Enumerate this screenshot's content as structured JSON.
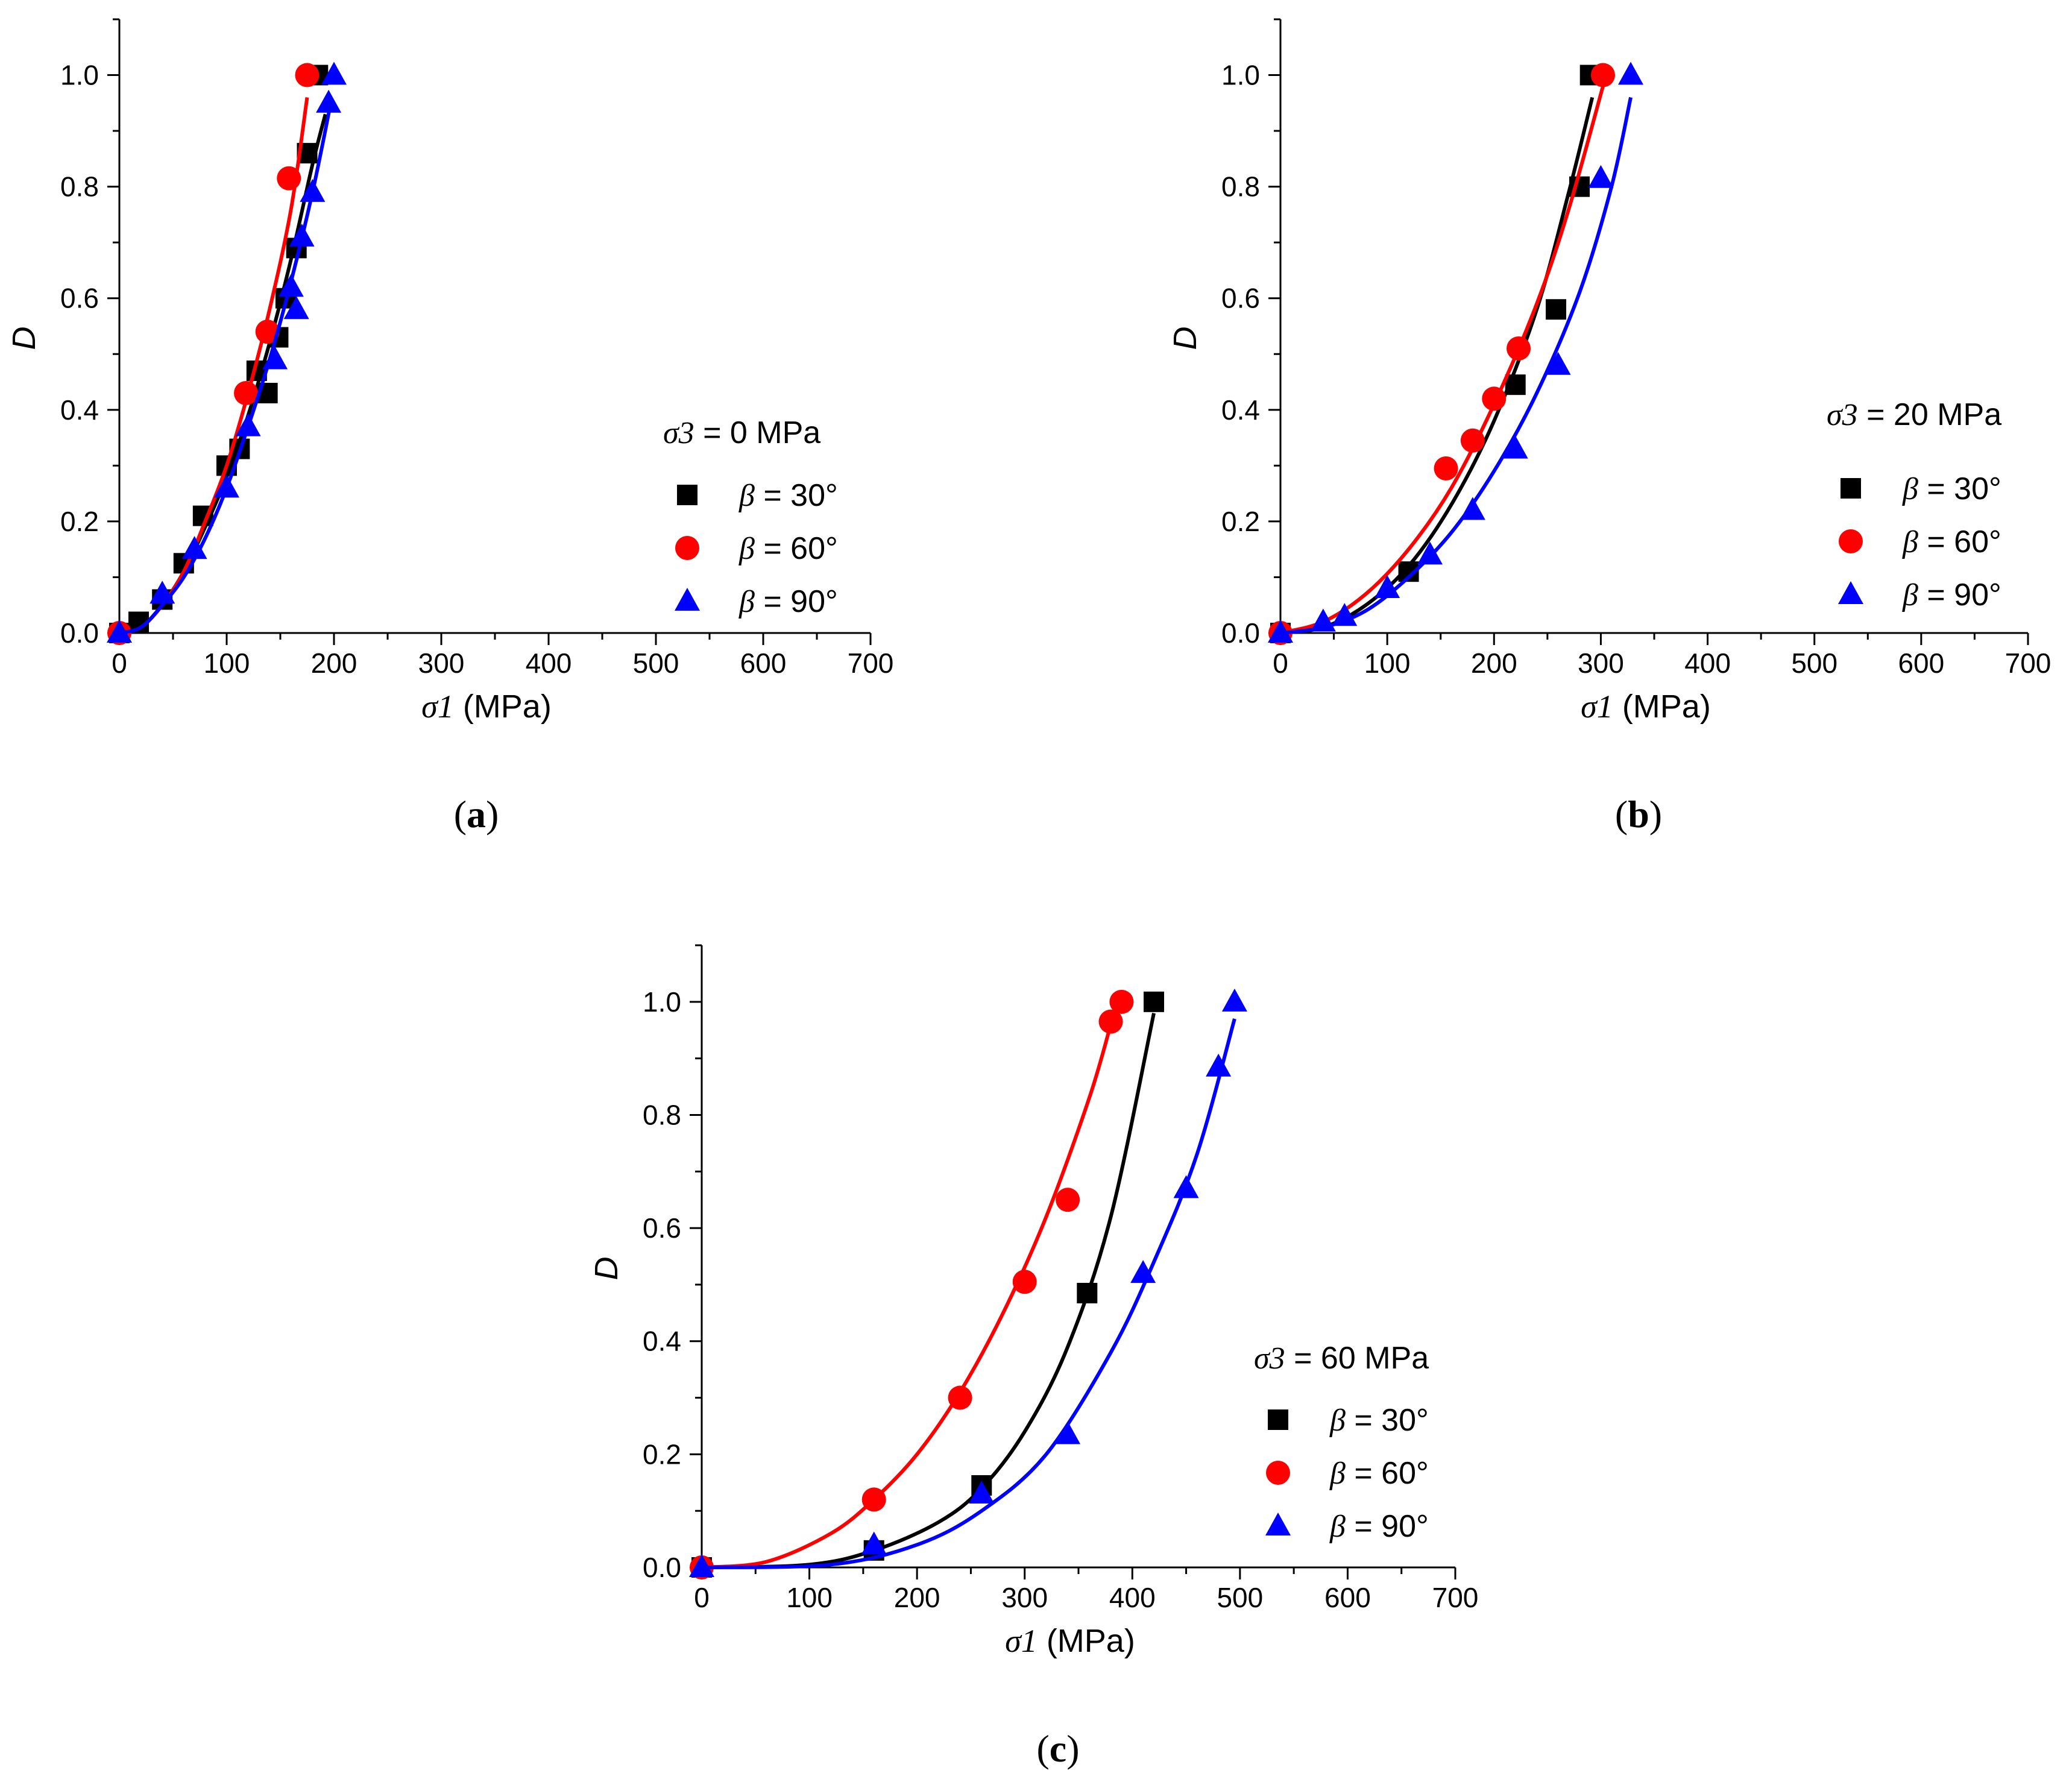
{
  "chart_data": [
    {
      "type": "scatter",
      "panel_label": "a",
      "xlabel": "σ1 (MPa)",
      "ylabel": "D",
      "xlim": [
        0,
        700
      ],
      "ylim": [
        0,
        1.1
      ],
      "xticks": [
        0,
        100,
        200,
        300,
        400,
        500,
        600,
        700
      ],
      "yticks": [
        "0.0",
        "0.2",
        "0.4",
        "0.6",
        "0.8",
        "1.0"
      ],
      "legend_title": "σ3 = 0 MPa",
      "legend_position": "right",
      "series": [
        {
          "name": "β = 30°",
          "color": "#000000",
          "marker": "square",
          "x": [
            0,
            18,
            40,
            60,
            78,
            100,
            112,
            128,
            138,
            148,
            155,
            165,
            175,
            185
          ],
          "y": [
            0,
            0.02,
            0.06,
            0.125,
            0.21,
            0.3,
            0.33,
            0.47,
            0.43,
            0.53,
            0.6,
            0.69,
            0.86,
            1.0
          ],
          "fit_x": [
            0,
            20,
            40,
            60,
            80,
            100,
            120,
            140,
            160,
            180,
            192
          ],
          "fit_y": [
            0,
            0.01,
            0.05,
            0.11,
            0.19,
            0.28,
            0.39,
            0.52,
            0.67,
            0.84,
            0.93
          ]
        },
        {
          "name": "β = 60°",
          "color": "#ff0000",
          "marker": "circle",
          "x": [
            0,
            118,
            138,
            158,
            175
          ],
          "y": [
            0,
            0.43,
            0.54,
            0.815,
            1.0
          ],
          "fit_x": [
            0,
            20,
            40,
            60,
            80,
            100,
            120,
            140,
            160,
            175
          ],
          "fit_y": [
            0,
            0.01,
            0.05,
            0.11,
            0.2,
            0.3,
            0.43,
            0.58,
            0.76,
            0.96
          ]
        },
        {
          "name": "β = 90°",
          "color": "#0000ff",
          "marker": "triangle",
          "x": [
            0,
            40,
            70,
            100,
            120,
            145,
            160,
            165,
            170,
            180,
            195,
            200
          ],
          "y": [
            0,
            0.07,
            0.15,
            0.26,
            0.37,
            0.49,
            0.62,
            0.58,
            0.71,
            0.79,
            0.95,
            1.0
          ],
          "fit_x": [
            0,
            20,
            40,
            60,
            80,
            100,
            120,
            140,
            160,
            180,
            196
          ],
          "fit_y": [
            0,
            0.01,
            0.05,
            0.1,
            0.17,
            0.26,
            0.37,
            0.49,
            0.63,
            0.79,
            0.94
          ]
        }
      ]
    },
    {
      "type": "scatter",
      "panel_label": "b",
      "xlabel": "σ1 (MPa)",
      "ylabel": "D",
      "xlim": [
        0,
        700
      ],
      "ylim": [
        0,
        1.1
      ],
      "xticks": [
        0,
        100,
        200,
        300,
        400,
        500,
        600,
        700
      ],
      "yticks": [
        "0.0",
        "0.2",
        "0.4",
        "0.6",
        "0.8",
        "1.0"
      ],
      "legend_title": "σ3 = 20 MPa",
      "legend_position": "right",
      "series": [
        {
          "name": "β = 30°",
          "color": "#000000",
          "marker": "square",
          "x": [
            0,
            120,
            220,
            258,
            280,
            290
          ],
          "y": [
            0,
            0.11,
            0.445,
            0.58,
            0.8,
            1.0
          ],
          "fit_x": [
            0,
            40,
            80,
            120,
            160,
            200,
            240,
            270,
            292
          ],
          "fit_y": [
            0,
            0.01,
            0.05,
            0.12,
            0.23,
            0.38,
            0.58,
            0.79,
            0.96
          ]
        },
        {
          "name": "β = 60°",
          "color": "#ff0000",
          "marker": "circle",
          "x": [
            0,
            155,
            180,
            200,
            223,
            302
          ],
          "y": [
            0,
            0.295,
            0.345,
            0.42,
            0.51,
            1.0
          ],
          "fit_x": [
            0,
            40,
            80,
            120,
            160,
            200,
            240,
            270,
            302
          ],
          "fit_y": [
            0,
            0.02,
            0.07,
            0.15,
            0.26,
            0.41,
            0.59,
            0.76,
            0.98
          ]
        },
        {
          "name": "β = 90°",
          "color": "#0000ff",
          "marker": "triangle",
          "x": [
            0,
            40,
            60,
            100,
            140,
            180,
            220,
            260,
            300,
            328
          ],
          "y": [
            0,
            0.02,
            0.03,
            0.08,
            0.14,
            0.22,
            0.33,
            0.48,
            0.815,
            1.0
          ],
          "fit_x": [
            0,
            40,
            80,
            120,
            160,
            200,
            240,
            280,
            310,
            328
          ],
          "fit_y": [
            0,
            0.01,
            0.04,
            0.1,
            0.18,
            0.29,
            0.43,
            0.61,
            0.8,
            0.96
          ]
        }
      ]
    },
    {
      "type": "scatter",
      "panel_label": "c",
      "xlabel": "σ1 (MPa)",
      "ylabel": "D",
      "xlim": [
        0,
        700
      ],
      "ylim": [
        0,
        1.1
      ],
      "xticks": [
        0,
        100,
        200,
        300,
        400,
        500,
        600,
        700
      ],
      "yticks": [
        "0.0",
        "0.2",
        "0.4",
        "0.6",
        "0.8",
        "1.0"
      ],
      "legend_title": "σ3 = 60 MPa",
      "legend_position": "right",
      "series": [
        {
          "name": "β = 30°",
          "color": "#000000",
          "marker": "square",
          "x": [
            0,
            160,
            260,
            358,
            420
          ],
          "y": [
            0,
            0.03,
            0.145,
            0.485,
            1.0
          ],
          "fit_x": [
            0,
            100,
            160,
            220,
            260,
            300,
            340,
            380,
            420
          ],
          "fit_y": [
            0,
            0.005,
            0.03,
            0.08,
            0.14,
            0.24,
            0.39,
            0.62,
            0.98
          ]
        },
        {
          "name": "β = 60°",
          "color": "#ff0000",
          "marker": "circle",
          "x": [
            0,
            160,
            240,
            300,
            340,
            380,
            390
          ],
          "y": [
            0,
            0.12,
            0.3,
            0.505,
            0.65,
            0.965,
            1.0
          ],
          "fit_x": [
            0,
            60,
            120,
            160,
            200,
            240,
            280,
            320,
            360,
            380
          ],
          "fit_y": [
            0,
            0.01,
            0.06,
            0.12,
            0.2,
            0.31,
            0.45,
            0.62,
            0.83,
            0.96
          ]
        },
        {
          "name": "β = 90°",
          "color": "#0000ff",
          "marker": "triangle",
          "x": [
            0,
            160,
            260,
            340,
            410,
            450,
            480,
            495
          ],
          "y": [
            0,
            0.04,
            0.13,
            0.235,
            0.52,
            0.67,
            0.885,
            1.0
          ],
          "fit_x": [
            0,
            120,
            200,
            260,
            320,
            380,
            420,
            460,
            495
          ],
          "fit_y": [
            0,
            0.005,
            0.04,
            0.1,
            0.2,
            0.38,
            0.54,
            0.73,
            0.97
          ]
        }
      ]
    }
  ]
}
